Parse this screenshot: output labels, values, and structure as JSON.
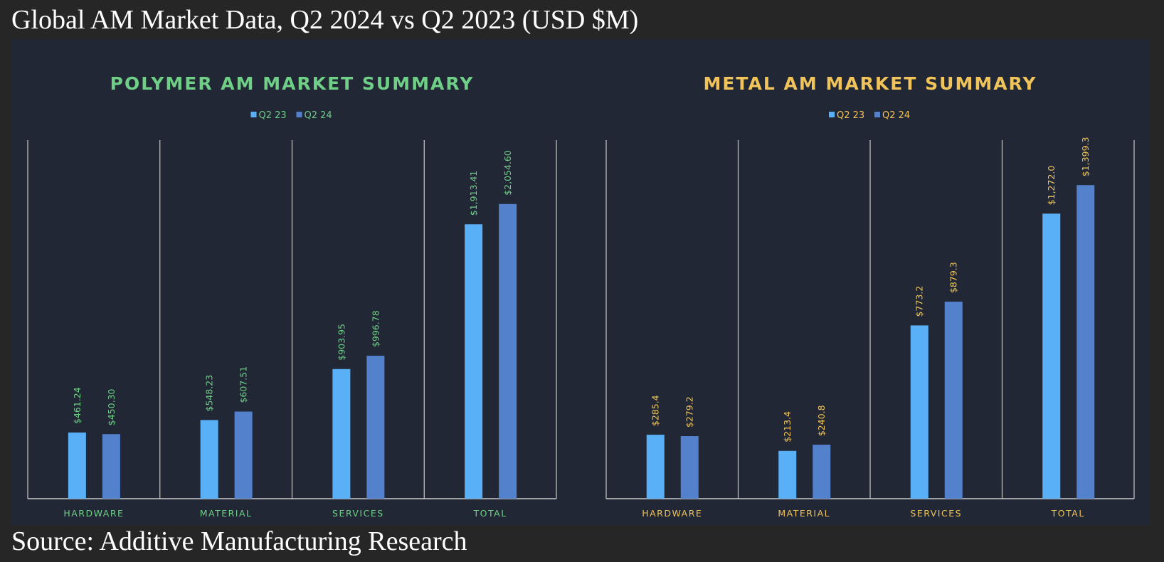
{
  "title": "Global AM Market Data, Q2 2024 vs Q2 2023 (USD $M)",
  "source": "Source: Additive Manufacturing Research",
  "series_colors": {
    "Q2 23": "#5ab0f6",
    "Q2 24": "#5381cc"
  },
  "chart_data": [
    {
      "type": "bar",
      "title": "POLYMER AM MARKET SUMMARY",
      "title_color": "#6fcf87",
      "categories": [
        "HARDWARE",
        "MATERIAL",
        "SERVICES",
        "TOTAL"
      ],
      "series": [
        {
          "name": "Q2 23",
          "values": [
            461.24,
            548.23,
            903.95,
            1913.41
          ],
          "labels": [
            "$461.24",
            "$548.23",
            "$903.95",
            "$1,913.41"
          ]
        },
        {
          "name": "Q2 24",
          "values": [
            450.3,
            607.51,
            996.78,
            2054.6
          ],
          "labels": [
            "$450.30",
            "$607.51",
            "$996.78",
            "$2,054.60"
          ]
        }
      ],
      "ylim": [
        0,
        2500
      ],
      "legend": "top-center",
      "grid": "vertical category separators"
    },
    {
      "type": "bar",
      "title": "METAL AM MARKET SUMMARY",
      "title_color": "#f0c45a",
      "categories": [
        "HARDWARE",
        "MATERIAL",
        "SERVICES",
        "TOTAL"
      ],
      "series": [
        {
          "name": "Q2 23",
          "values": [
            285.4,
            213.4,
            773.2,
            1272.0
          ],
          "labels": [
            "$285.4",
            "$213.4",
            "$773.2",
            "$1,272.0"
          ]
        },
        {
          "name": "Q2 24",
          "values": [
            279.2,
            240.8,
            879.3,
            1399.3
          ],
          "labels": [
            "$279.2",
            "$240.8",
            "$879.3",
            "$1,399.3"
          ]
        }
      ],
      "ylim": [
        0,
        1600
      ],
      "legend": "top-center",
      "grid": "vertical category separators"
    }
  ]
}
